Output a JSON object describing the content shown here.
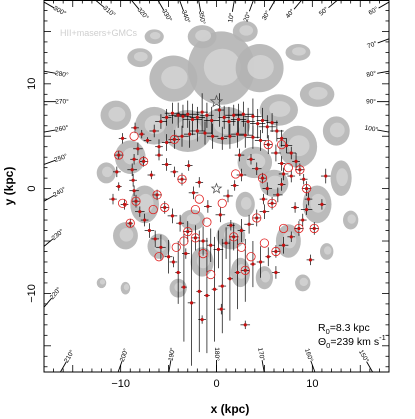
{
  "chart_data": {
    "type": "scatter",
    "title": "",
    "xlabel": "x (kpc)",
    "ylabel": "y (kpc)",
    "xlim": [
      -18,
      18
    ],
    "ylim": [
      -17.5,
      18
    ],
    "xticks": [
      -10,
      0,
      10
    ],
    "yticks": [
      -10,
      0,
      10
    ],
    "legend_text": "HII+masers+GMCs",
    "annotation": {
      "r0_label": "R",
      "r0_sub": "0",
      "r0_value": "=8.3 kpc",
      "theta_label": "Θ",
      "theta_sub": "0",
      "theta_value": "=239 km s",
      "theta_exp": "-1"
    },
    "sun_position": [
      0,
      8.3
    ],
    "galactic_center": [
      0,
      0
    ],
    "galactic_longitude_labels": [
      {
        "l": 210,
        "text": "210°"
      },
      {
        "l": 200,
        "text": "200°"
      },
      {
        "l": 190,
        "text": "190°"
      },
      {
        "l": 180,
        "text": "180°"
      },
      {
        "l": 170,
        "text": "170°"
      },
      {
        "l": 160,
        "text": "160°"
      },
      {
        "l": 150,
        "text": "150°"
      },
      {
        "l": 280,
        "text": "280°"
      },
      {
        "l": 270,
        "text": "270°"
      },
      {
        "l": 260,
        "text": "260°"
      },
      {
        "l": 250,
        "text": "250°"
      },
      {
        "l": 240,
        "text": "240°"
      },
      {
        "l": 230,
        "text": "230°"
      },
      {
        "l": 220,
        "text": "220°"
      },
      {
        "l": 100,
        "text": "100°"
      },
      {
        "l": 90,
        "text": "90°"
      },
      {
        "l": 80,
        "text": "80°"
      },
      {
        "l": 70,
        "text": "70°"
      },
      {
        "l": 60,
        "text": "60°"
      },
      {
        "l": 50,
        "text": "50°"
      },
      {
        "l": 40,
        "text": "40°"
      },
      {
        "l": 300,
        "text": "300°"
      },
      {
        "l": 310,
        "text": "310°"
      },
      {
        "l": 320,
        "text": "320°"
      },
      {
        "l": 330,
        "text": "330°"
      },
      {
        "l": 340,
        "text": "340°"
      },
      {
        "l": 350,
        "text": "350°"
      },
      {
        "l": 10,
        "text": "10°"
      },
      {
        "l": 20,
        "text": "20°"
      },
      {
        "l": 30,
        "text": "30°"
      }
    ],
    "grey_clouds": [
      {
        "x": 0.5,
        "y": 11.5,
        "rx": 3.5,
        "ry": 3.5
      },
      {
        "x": -4.5,
        "y": 10.5,
        "rx": 2.5,
        "ry": 2.2
      },
      {
        "x": 4.5,
        "y": 11.5,
        "rx": 2.5,
        "ry": 2.3
      },
      {
        "x": -1.5,
        "y": 14.5,
        "rx": 1.5,
        "ry": 1.1
      },
      {
        "x": 3.0,
        "y": 15.0,
        "rx": 1.3,
        "ry": 1.0
      },
      {
        "x": -6.5,
        "y": 14.5,
        "rx": 1.0,
        "ry": 0.7
      },
      {
        "x": -8.0,
        "y": 12.5,
        "rx": 1.3,
        "ry": 0.9
      },
      {
        "x": 8.5,
        "y": 13.0,
        "rx": 1.3,
        "ry": 0.8
      },
      {
        "x": 10.5,
        "y": 9.0,
        "rx": 1.8,
        "ry": 1.2
      },
      {
        "x": 12.5,
        "y": 5.5,
        "rx": 1.4,
        "ry": 1.4
      },
      {
        "x": 13.0,
        "y": 1.0,
        "rx": 1.1,
        "ry": 1.7
      },
      {
        "x": 14.0,
        "y": -3.0,
        "rx": 0.8,
        "ry": 0.9
      },
      {
        "x": 10.5,
        "y": -1.5,
        "rx": 1.5,
        "ry": 1.8
      },
      {
        "x": 8.5,
        "y": 4.0,
        "rx": 2.0,
        "ry": 2.0
      },
      {
        "x": 6.5,
        "y": 7.5,
        "rx": 2.0,
        "ry": 1.5
      },
      {
        "x": 7.5,
        "y": -5.0,
        "rx": 1.3,
        "ry": 1.6
      },
      {
        "x": 5.0,
        "y": -8.5,
        "rx": 0.9,
        "ry": 1.1
      },
      {
        "x": -3.0,
        "y": 5.5,
        "rx": 2.5,
        "ry": 2.0
      },
      {
        "x": 1.0,
        "y": 6.0,
        "rx": 2.5,
        "ry": 1.8
      },
      {
        "x": -6.5,
        "y": 6.0,
        "rx": 2.0,
        "ry": 1.8
      },
      {
        "x": -10.5,
        "y": 7.0,
        "rx": 1.6,
        "ry": 1.4
      },
      {
        "x": -9.0,
        "y": 3.0,
        "rx": 1.6,
        "ry": 1.6
      },
      {
        "x": -11.5,
        "y": 1.5,
        "rx": 1.0,
        "ry": 1.0
      },
      {
        "x": -7.5,
        "y": -1.5,
        "rx": 1.5,
        "ry": 1.8
      },
      {
        "x": -9.5,
        "y": -4.5,
        "rx": 1.3,
        "ry": 1.3
      },
      {
        "x": -6.0,
        "y": -5.5,
        "rx": 1.2,
        "ry": 1.2
      },
      {
        "x": -4.0,
        "y": -9.5,
        "rx": 0.9,
        "ry": 0.9
      },
      {
        "x": -12.0,
        "y": -9.0,
        "rx": 0.5,
        "ry": 0.5
      },
      {
        "x": -9.5,
        "y": -9.5,
        "rx": 0.5,
        "ry": 0.6
      },
      {
        "x": 4.0,
        "y": 2.5,
        "rx": 1.8,
        "ry": 1.5
      },
      {
        "x": 6.0,
        "y": 0.5,
        "rx": 1.5,
        "ry": 1.3
      },
      {
        "x": 1.5,
        "y": -4.5,
        "rx": 1.5,
        "ry": 1.3
      },
      {
        "x": -2.5,
        "y": -3.0,
        "rx": 1.3,
        "ry": 1.0
      },
      {
        "x": 3.0,
        "y": -1.5,
        "rx": 1.0,
        "ry": 1.2
      },
      {
        "x": -1.5,
        "y": -7.0,
        "rx": 1.2,
        "ry": 1.4
      },
      {
        "x": 2.5,
        "y": -8.0,
        "rx": 1.0,
        "ry": 1.4
      },
      {
        "x": 9.0,
        "y": -9.0,
        "rx": 0.8,
        "ry": 0.8
      },
      {
        "x": 11.5,
        "y": -6.0,
        "rx": 0.7,
        "ry": 0.8
      }
    ],
    "crosses": [
      [
        -8.5,
        5.8,
        0.4,
        0.5
      ],
      [
        -7.8,
        5.2,
        0.3,
        0.4
      ],
      [
        -7.2,
        4.6,
        0.4,
        0.3
      ],
      [
        -6.5,
        5.5,
        0.5,
        0.6
      ],
      [
        -5.8,
        6.4,
        0.6,
        0.7
      ],
      [
        -5.2,
        6.8,
        0.5,
        0.8
      ],
      [
        -4.6,
        7.2,
        0.8,
        1.0
      ],
      [
        -4.0,
        7.0,
        1.0,
        1.2
      ],
      [
        -3.5,
        6.9,
        0.9,
        1.1
      ],
      [
        -3.0,
        7.1,
        1.2,
        1.3
      ],
      [
        -2.5,
        6.6,
        1.0,
        1.5
      ],
      [
        -2.0,
        6.8,
        0.8,
        1.0
      ],
      [
        -1.5,
        7.3,
        0.6,
        1.8
      ],
      [
        -1.0,
        7.0,
        0.7,
        1.2
      ],
      [
        -0.5,
        6.5,
        0.8,
        1.3
      ],
      [
        0.3,
        7.5,
        0.5,
        1.6
      ],
      [
        0.8,
        6.8,
        0.6,
        1.1
      ],
      [
        1.3,
        6.4,
        0.7,
        1.4
      ],
      [
        1.8,
        7.0,
        0.9,
        1.0
      ],
      [
        2.3,
        6.6,
        0.8,
        1.5
      ],
      [
        2.8,
        7.1,
        1.1,
        1.2
      ],
      [
        3.3,
        6.4,
        0.7,
        1.3
      ],
      [
        3.8,
        6.9,
        0.9,
        1.7
      ],
      [
        4.3,
        6.2,
        0.8,
        1.4
      ],
      [
        4.8,
        6.5,
        0.6,
        1.2
      ],
      [
        5.3,
        5.9,
        0.9,
        1.1
      ],
      [
        5.8,
        6.3,
        0.6,
        0.9
      ],
      [
        6.3,
        5.5,
        0.7,
        1.0
      ],
      [
        6.8,
        4.8,
        0.5,
        0.8
      ],
      [
        7.3,
        4.1,
        0.6,
        0.7
      ],
      [
        7.8,
        3.4,
        0.5,
        0.6
      ],
      [
        8.3,
        2.6,
        0.4,
        0.8
      ],
      [
        8.7,
        1.8,
        0.5,
        0.6
      ],
      [
        9.1,
        0.9,
        0.4,
        0.5
      ],
      [
        9.4,
        0.0,
        0.5,
        0.7
      ],
      [
        9.6,
        -1.0,
        0.4,
        0.6
      ],
      [
        9.4,
        -2.0,
        0.6,
        0.5
      ],
      [
        9.0,
        -3.0,
        0.4,
        0.6
      ],
      [
        8.6,
        -3.8,
        0.5,
        0.7
      ],
      [
        7.8,
        -4.6,
        0.4,
        0.5
      ],
      [
        7.0,
        -5.4,
        0.5,
        0.8
      ],
      [
        6.2,
        -6.0,
        0.4,
        0.6
      ],
      [
        5.4,
        -6.5,
        0.3,
        0.9
      ],
      [
        4.6,
        -7.0,
        0.4,
        1.5
      ],
      [
        3.8,
        -7.2,
        0.3,
        2.2
      ],
      [
        3.0,
        -7.8,
        0.4,
        3.0
      ],
      [
        2.2,
        -8.0,
        0.3,
        3.5
      ],
      [
        1.4,
        -8.6,
        0.3,
        4.0
      ],
      [
        0.6,
        -9.3,
        0.4,
        4.5
      ],
      [
        -0.2,
        -9.6,
        0.3,
        5.0
      ],
      [
        -1.0,
        -10.2,
        0.3,
        5.5
      ],
      [
        -1.8,
        -9.8,
        0.3,
        5.8
      ],
      [
        -2.6,
        -10.9,
        0.4,
        6.0
      ],
      [
        -3.4,
        -9.4,
        0.3,
        5.2
      ],
      [
        -4.0,
        -8.0,
        0.3,
        3.0
      ],
      [
        -5.0,
        -6.5,
        0.4,
        1.6
      ],
      [
        -5.8,
        -5.6,
        0.5,
        1.2
      ],
      [
        -6.4,
        -4.8,
        0.4,
        0.8
      ],
      [
        -7.0,
        -4.0,
        0.5,
        0.7
      ],
      [
        -7.5,
        -3.0,
        0.4,
        0.6
      ],
      [
        -8.0,
        -2.2,
        0.5,
        0.5
      ],
      [
        -8.4,
        -1.2,
        0.4,
        0.6
      ],
      [
        -8.6,
        -0.2,
        0.5,
        0.5
      ],
      [
        -8.7,
        0.8,
        0.4,
        0.6
      ],
      [
        -8.8,
        1.8,
        0.5,
        0.6
      ],
      [
        -8.6,
        2.8,
        0.4,
        0.5
      ],
      [
        -8.2,
        3.8,
        0.5,
        0.6
      ],
      [
        -9.8,
        4.8,
        0.4,
        0.5
      ],
      [
        -10.2,
        3.2,
        0.5,
        0.4
      ],
      [
        -10.4,
        1.6,
        0.4,
        0.5
      ],
      [
        -10.2,
        0.2,
        0.3,
        0.4
      ],
      [
        -9.6,
        -1.5,
        0.4,
        0.5
      ],
      [
        -9.0,
        -3.3,
        0.3,
        0.4
      ],
      [
        -6.0,
        3.2,
        0.4,
        0.5
      ],
      [
        -5.2,
        2.3,
        0.5,
        0.6
      ],
      [
        -4.4,
        1.6,
        0.4,
        0.5
      ],
      [
        -3.6,
        0.9,
        0.5,
        0.6
      ],
      [
        -6.8,
        1.3,
        0.4,
        0.4
      ],
      [
        -6.2,
        -0.6,
        0.5,
        0.5
      ],
      [
        -5.4,
        -1.8,
        0.4,
        0.6
      ],
      [
        -4.6,
        -2.6,
        0.5,
        0.7
      ],
      [
        -3.8,
        -3.3,
        0.4,
        0.8
      ],
      [
        -3.0,
        -4.1,
        0.5,
        1.0
      ],
      [
        -2.2,
        -4.7,
        0.4,
        1.2
      ],
      [
        -1.4,
        -5.0,
        0.5,
        1.4
      ],
      [
        -0.6,
        -5.4,
        0.4,
        1.6
      ],
      [
        0.2,
        -5.8,
        0.5,
        1.8
      ],
      [
        1.0,
        -5.2,
        0.4,
        1.5
      ],
      [
        1.8,
        -4.6,
        0.5,
        1.3
      ],
      [
        2.6,
        -4.0,
        0.4,
        1.1
      ],
      [
        3.4,
        -3.4,
        0.5,
        0.9
      ],
      [
        4.2,
        -2.8,
        0.4,
        0.8
      ],
      [
        5.0,
        -2.2,
        0.5,
        0.7
      ],
      [
        5.8,
        -1.4,
        0.4,
        0.6
      ],
      [
        6.4,
        -0.6,
        0.5,
        0.7
      ],
      [
        6.8,
        0.4,
        0.4,
        0.6
      ],
      [
        7.0,
        1.4,
        0.5,
        0.6
      ],
      [
        6.8,
        2.4,
        0.4,
        0.7
      ],
      [
        6.2,
        3.4,
        0.5,
        0.8
      ],
      [
        5.4,
        4.2,
        0.4,
        0.9
      ],
      [
        4.6,
        4.6,
        0.6,
        1.0
      ],
      [
        3.8,
        4.9,
        0.7,
        1.1
      ],
      [
        3.0,
        5.1,
        0.8,
        1.2
      ],
      [
        2.2,
        5.2,
        0.7,
        1.3
      ],
      [
        1.4,
        5.0,
        0.6,
        1.2
      ],
      [
        0.6,
        4.8,
        0.5,
        1.1
      ],
      [
        -0.4,
        5.0,
        0.6,
        1.2
      ],
      [
        -1.2,
        5.3,
        0.7,
        1.1
      ],
      [
        -2.0,
        5.5,
        0.8,
        1.0
      ],
      [
        -2.8,
        5.2,
        0.6,
        1.3
      ],
      [
        -3.6,
        5.0,
        0.7,
        1.0
      ],
      [
        -4.4,
        4.7,
        0.6,
        0.9
      ],
      [
        -5.2,
        4.4,
        0.5,
        0.8
      ],
      [
        -6.0,
        4.0,
        0.4,
        0.7
      ],
      [
        3.6,
        2.8,
        0.4,
        0.5
      ],
      [
        4.2,
        1.9,
        0.5,
        0.6
      ],
      [
        4.8,
        1.0,
        0.4,
        0.5
      ],
      [
        5.3,
        0.0,
        0.5,
        0.6
      ],
      [
        4.9,
        -1.0,
        0.4,
        0.5
      ],
      [
        2.6,
        1.3,
        0.5,
        0.6
      ],
      [
        1.9,
        0.3,
        0.4,
        0.5
      ],
      [
        1.2,
        -0.7,
        0.5,
        0.6
      ],
      [
        -1.8,
        0.6,
        0.4,
        0.5
      ],
      [
        -2.4,
        -0.4,
        0.5,
        0.6
      ],
      [
        -0.9,
        -1.7,
        0.4,
        0.6
      ],
      [
        0.4,
        -2.5,
        0.5,
        0.7
      ],
      [
        -2.9,
        2.2,
        0.4,
        0.5
      ],
      [
        2.4,
        3.2,
        0.5,
        0.6
      ],
      [
        10.2,
        -3.8,
        0.5,
        0.6
      ],
      [
        9.8,
        -6.8,
        0.4,
        0.5
      ],
      [
        11.4,
        1.2,
        0.5,
        0.7
      ],
      [
        11.0,
        -1.5,
        0.4,
        0.5
      ],
      [
        3.0,
        -13.0,
        0.5,
        0.4
      ],
      [
        -1.5,
        -12.5,
        0.4,
        0.4
      ],
      [
        0.5,
        -11.5,
        0.4,
        0.5
      ],
      [
        6.2,
        -8.0,
        0.4,
        0.6
      ],
      [
        -4.5,
        -7.0,
        0.4,
        0.5
      ],
      [
        -3.2,
        -6.2,
        0.4,
        0.5
      ],
      [
        1.5,
        -3.5,
        0.4,
        0.5
      ],
      [
        7.8,
        1.2,
        0.4,
        0.6
      ],
      [
        8.2,
        -1.8,
        0.4,
        0.5
      ],
      [
        -7.6,
        2.6,
        0.4,
        0.5
      ],
      [
        -10.8,
        -1.0,
        0.4,
        0.5
      ]
    ],
    "circles": [
      [
        -10.2,
        3.2
      ],
      [
        -9.0,
        -3.3
      ],
      [
        -6.6,
        -2.0
      ],
      [
        -5.4,
        -1.8
      ],
      [
        -3.0,
        -4.1
      ],
      [
        -2.2,
        -4.7
      ],
      [
        -4.2,
        -5.6
      ],
      [
        -3.4,
        -5.0
      ],
      [
        -1.4,
        -6.2
      ],
      [
        1.8,
        -4.6
      ],
      [
        2.6,
        -5.6
      ],
      [
        3.6,
        -6.5
      ],
      [
        5.0,
        -5.2
      ],
      [
        6.2,
        -6.0
      ],
      [
        7.0,
        -3.8
      ],
      [
        8.6,
        -3.8
      ],
      [
        9.4,
        0.0
      ],
      [
        8.7,
        1.8
      ],
      [
        7.5,
        2.0
      ],
      [
        5.8,
        -1.4
      ],
      [
        6.8,
        4.2
      ],
      [
        -8.6,
        5.0
      ],
      [
        -7.6,
        2.6
      ],
      [
        -9.8,
        -1.4
      ],
      [
        -6.2,
        -0.6
      ],
      [
        -3.6,
        0.9
      ],
      [
        -2.2,
        -2.0
      ],
      [
        3.0,
        -7.8
      ],
      [
        4.2,
        -2.8
      ],
      [
        -1.0,
        -3.2
      ],
      [
        -0.6,
        -8.2
      ],
      [
        -6.0,
        -6.5
      ],
      [
        2.0,
        1.4
      ],
      [
        -8.4,
        -1.2
      ],
      [
        4.8,
        1.0
      ],
      [
        5.4,
        4.2
      ],
      [
        -4.4,
        4.7
      ],
      [
        -1.8,
        -1.0
      ],
      [
        0.6,
        -1.4
      ],
      [
        10.2,
        -3.8
      ]
    ],
    "colors": {
      "cloud_grey": "#b4b4b4",
      "cloud_light": "#d6d6d6",
      "error_bar": "#000000",
      "point_red": "#c41010",
      "circle_red": "#e02020"
    }
  }
}
